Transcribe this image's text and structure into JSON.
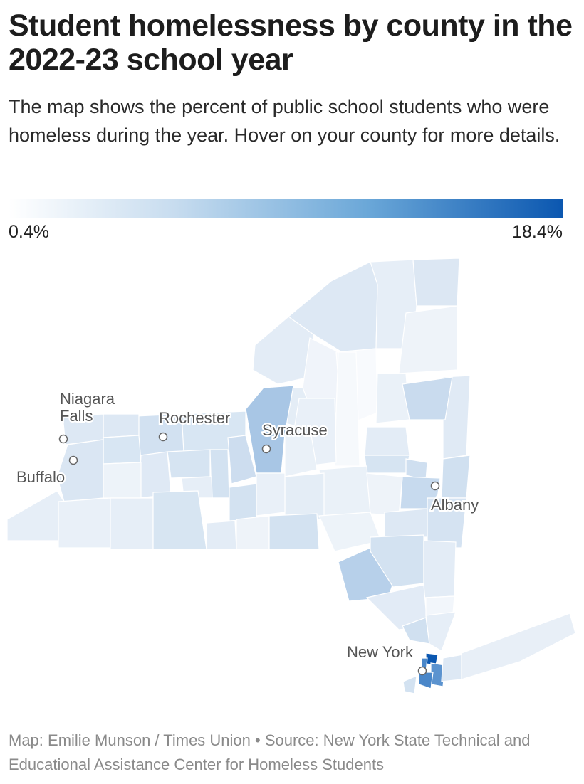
{
  "title": "Student homelessness by county in the 2022-23 school year",
  "subtitle": "The map shows the percent of public school students who were homeless during the year. Hover on your county for more details.",
  "legend": {
    "min_label": "0.4%",
    "max_label": "18.4%",
    "min_value": 0.4,
    "max_value": 18.4,
    "color_low": "#ffffff",
    "color_high": "#0b57b0"
  },
  "cities": [
    {
      "name": "Niagara Falls",
      "label_line1": "Niagara",
      "label_line2": "Falls"
    },
    {
      "name": "Buffalo"
    },
    {
      "name": "Rochester"
    },
    {
      "name": "Syracuse"
    },
    {
      "name": "Albany"
    },
    {
      "name": "New York"
    }
  ],
  "source": "Map: Emilie Munson / Times Union • Source: New York State Technical and Educational Assistance Center for Homeless Students"
}
